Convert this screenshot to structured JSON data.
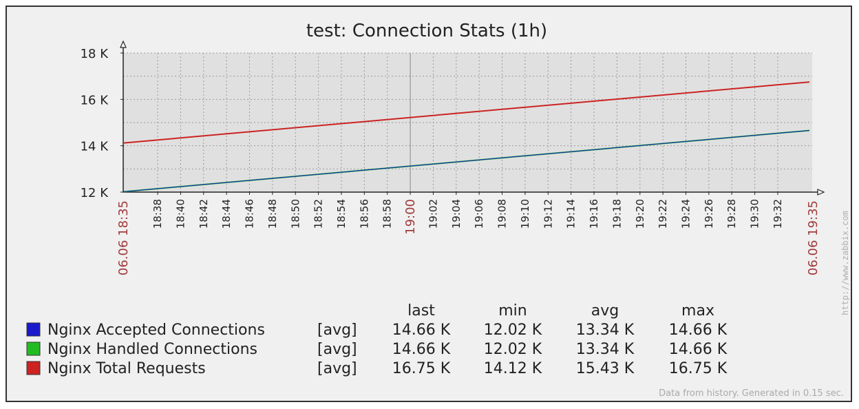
{
  "chart_data": {
    "type": "line",
    "title": "test: Connection Stats (1h)",
    "x_start_label": "06.06 18:35",
    "x_end_label": "06.06 19:35",
    "x_ticks": [
      "18:38",
      "18:40",
      "18:42",
      "18:44",
      "18:46",
      "18:48",
      "18:50",
      "18:52",
      "18:54",
      "18:56",
      "18:58",
      "19:00",
      "19:02",
      "19:04",
      "19:06",
      "19:08",
      "19:10",
      "19:12",
      "19:14",
      "19:16",
      "19:18",
      "19:20",
      "19:22",
      "19:24",
      "19:26",
      "19:28",
      "19:30",
      "19:32"
    ],
    "x_highlight_tick": "19:00",
    "y_ticks": [
      "12 K",
      "14 K",
      "16 K",
      "18 K"
    ],
    "ylim": [
      12000,
      18000
    ],
    "series": [
      {
        "name": "Nginx Accepted Connections",
        "color": "#1a1acc",
        "start": 12020,
        "end": 14660
      },
      {
        "name": "Nginx Handled Connections",
        "color": "#22bb22",
        "start": 12020,
        "end": 14660
      },
      {
        "name": "Nginx Total Requests",
        "color": "#cc2222",
        "start": 14120,
        "end": 16750
      }
    ],
    "legend": {
      "headers": [
        "last",
        "min",
        "avg",
        "max"
      ],
      "rows": [
        {
          "name": "Nginx Accepted Connections",
          "func": "[avg]",
          "last": "14.66 K",
          "min": "12.02 K",
          "avg": "13.34 K",
          "max": "14.66 K",
          "color": "#1a1acc"
        },
        {
          "name": "Nginx Handled Connections",
          "func": "[avg]",
          "last": "14.66 K",
          "min": "12.02 K",
          "avg": "13.34 K",
          "max": "14.66 K",
          "color": "#22bb22"
        },
        {
          "name": "Nginx Total Requests",
          "func": "[avg]",
          "last": "16.75 K",
          "min": "14.12 K",
          "avg": "15.43 K",
          "max": "16.75 K",
          "color": "#cc2222"
        }
      ]
    },
    "footer": "Data from history. Generated in 0.15 sec.",
    "watermark": "http://www.zabbix.com",
    "grid": true
  }
}
